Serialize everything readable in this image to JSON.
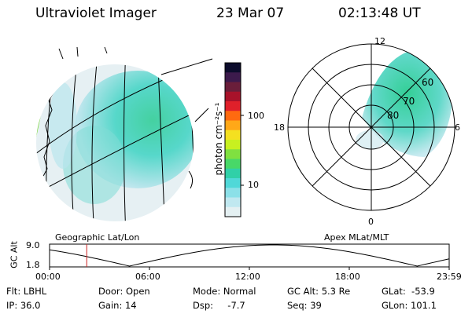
{
  "header": {
    "instrument": "Ultraviolet Imager",
    "date": "23 Mar 07",
    "time": "02:13:48 UT"
  },
  "colorbar": {
    "label": "photon cm⁻²s⁻¹",
    "scale": "log",
    "ticks": [
      "100",
      "10"
    ],
    "colors": [
      "#0c0c2c",
      "#3c1a4c",
      "#6a1e3a",
      "#a8122a",
      "#e0202a",
      "#ff6a10",
      "#ffa818",
      "#f4e020",
      "#c8f020",
      "#80e040",
      "#48d868",
      "#30d0a8",
      "#50d8d8",
      "#8ce0e8",
      "#c0e8f0",
      "#e4f0f2"
    ]
  },
  "left_panel": {
    "label": "Geographic Lat/Lon"
  },
  "right_panel": {
    "label": "Apex MLat/MLT",
    "mlt_labels": {
      "top": "12",
      "left": "18",
      "right": "6",
      "bottom": "0"
    },
    "lat_labels": [
      "60",
      "70",
      "80"
    ]
  },
  "altitude_plot": {
    "y_label": "GC Alt",
    "y_ticks": [
      "9.0",
      "1.8"
    ],
    "x_ticks": [
      "00:00",
      "06:00",
      "12:00",
      "18:00",
      "23:59"
    ],
    "marker_color": "#cc2222",
    "marker_time_fraction": 0.093
  },
  "status": {
    "flt": "Flt: LBHL",
    "ip": "IP: 36.0",
    "door": "Door: Open",
    "gain": "Gain: 14",
    "mode": "Mode: Normal",
    "dsp": "Dsp:     -7.7",
    "gc_alt": "GC Alt: 5.3 Re",
    "seq": "Seq: 39",
    "glat": "GLat:  -53.9",
    "glon": "GLon: 101.1"
  }
}
